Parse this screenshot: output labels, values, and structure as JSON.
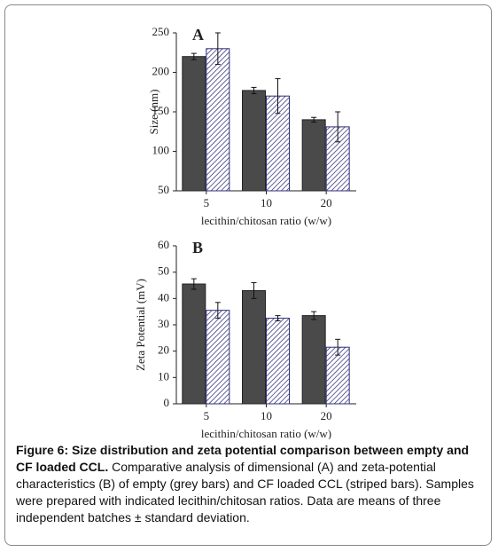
{
  "chart_data": [
    {
      "type": "bar",
      "panel_label": "A",
      "y_label": "Size (nm)",
      "x_label": "lecithin/chitosan ratio (w/w)",
      "categories": [
        "5",
        "10",
        "20"
      ],
      "series": [
        {
          "color": "#4a4a4a",
          "hatch": false,
          "values": [
            220,
            177,
            140
          ],
          "errors": [
            4,
            4,
            3
          ]
        },
        {
          "color": "#2e2e7a",
          "hatch": true,
          "values": [
            230,
            170,
            131
          ],
          "errors": [
            20,
            22,
            19
          ]
        }
      ],
      "ylim": [
        50,
        250
      ],
      "yticks": [
        50,
        100,
        150,
        200,
        250
      ]
    },
    {
      "type": "bar",
      "panel_label": "B",
      "y_label": "Zeta Potential (mV)",
      "x_label": "lecithin/chitosan ratio (w/w)",
      "categories": [
        "5",
        "10",
        "20"
      ],
      "series": [
        {
          "color": "#4a4a4a",
          "hatch": false,
          "values": [
            45.5,
            43,
            33.5
          ],
          "errors": [
            2,
            3,
            1.5
          ]
        },
        {
          "color": "#2e2e7a",
          "hatch": true,
          "values": [
            35.5,
            32.5,
            21.5
          ],
          "errors": [
            3,
            1,
            3
          ]
        }
      ],
      "ylim": [
        0,
        60
      ],
      "yticks": [
        0,
        10,
        20,
        30,
        40,
        50,
        60
      ]
    }
  ],
  "caption": {
    "title": "Figure 6: Size distribution and zeta potential comparison between empty and CF loaded CCL.",
    "text": "Comparative analysis of dimensional (A) and zeta-potential characteristics (B) of empty (grey bars) and CF loaded CCL (striped bars). Samples were prepared with indicated lecithin/chitosan ratios. Data are means of three independent batches ± standard deviation."
  }
}
